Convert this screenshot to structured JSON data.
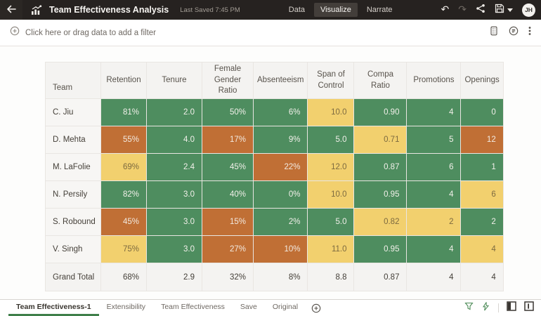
{
  "header": {
    "title": "Team Effectiveness Analysis",
    "last_saved": "Last Saved 7:45 PM",
    "nav": [
      {
        "label": "Data",
        "active": false
      },
      {
        "label": "Visualize",
        "active": true
      },
      {
        "label": "Narrate",
        "active": false
      }
    ],
    "avatar_initials": "JH"
  },
  "filter_bar": {
    "prompt": "Click here or drag data to add a filter"
  },
  "table": {
    "columns": [
      "Team",
      "Retention",
      "Tenure",
      "Female Gender Ratio",
      "Absenteeism",
      "Span of Control",
      "Compa Ratio",
      "Promotions",
      "Openings"
    ],
    "rows": [
      {
        "team": "C. Jiu",
        "cells": [
          {
            "v": "81%",
            "c": "green"
          },
          {
            "v": "2.0",
            "c": "green"
          },
          {
            "v": "50%",
            "c": "green"
          },
          {
            "v": "6%",
            "c": "green"
          },
          {
            "v": "10.0",
            "c": "yellow"
          },
          {
            "v": "0.90",
            "c": "green"
          },
          {
            "v": "4",
            "c": "green"
          },
          {
            "v": "0",
            "c": "green"
          }
        ]
      },
      {
        "team": "D. Mehta",
        "cells": [
          {
            "v": "55%",
            "c": "orange"
          },
          {
            "v": "4.0",
            "c": "green"
          },
          {
            "v": "17%",
            "c": "orange"
          },
          {
            "v": "9%",
            "c": "green"
          },
          {
            "v": "5.0",
            "c": "green"
          },
          {
            "v": "0.71",
            "c": "yellow"
          },
          {
            "v": "5",
            "c": "green"
          },
          {
            "v": "12",
            "c": "orange"
          }
        ]
      },
      {
        "team": "M. LaFolie",
        "cells": [
          {
            "v": "69%",
            "c": "yellow"
          },
          {
            "v": "2.4",
            "c": "green"
          },
          {
            "v": "45%",
            "c": "green"
          },
          {
            "v": "22%",
            "c": "orange"
          },
          {
            "v": "12.0",
            "c": "yellow"
          },
          {
            "v": "0.87",
            "c": "green"
          },
          {
            "v": "6",
            "c": "green"
          },
          {
            "v": "1",
            "c": "green"
          }
        ]
      },
      {
        "team": "N. Persily",
        "cells": [
          {
            "v": "82%",
            "c": "green"
          },
          {
            "v": "3.0",
            "c": "green"
          },
          {
            "v": "40%",
            "c": "green"
          },
          {
            "v": "0%",
            "c": "green"
          },
          {
            "v": "10.0",
            "c": "yellow"
          },
          {
            "v": "0.95",
            "c": "green"
          },
          {
            "v": "4",
            "c": "green"
          },
          {
            "v": "6",
            "c": "yellow"
          }
        ]
      },
      {
        "team": "S. Robound",
        "cells": [
          {
            "v": "45%",
            "c": "orange"
          },
          {
            "v": "3.0",
            "c": "green"
          },
          {
            "v": "15%",
            "c": "orange"
          },
          {
            "v": "2%",
            "c": "green"
          },
          {
            "v": "5.0",
            "c": "green"
          },
          {
            "v": "0.82",
            "c": "yellow"
          },
          {
            "v": "2",
            "c": "yellow"
          },
          {
            "v": "2",
            "c": "green"
          }
        ]
      },
      {
        "team": "V. Singh",
        "cells": [
          {
            "v": "75%",
            "c": "yellow"
          },
          {
            "v": "3.0",
            "c": "green"
          },
          {
            "v": "27%",
            "c": "orange"
          },
          {
            "v": "10%",
            "c": "orange"
          },
          {
            "v": "11.0",
            "c": "yellow"
          },
          {
            "v": "0.95",
            "c": "green"
          },
          {
            "v": "4",
            "c": "green"
          },
          {
            "v": "4",
            "c": "yellow"
          }
        ]
      }
    ],
    "grand_total": {
      "label": "Grand Total",
      "values": [
        "68%",
        "2.9",
        "32%",
        "8%",
        "8.8",
        "0.87",
        "4",
        "4"
      ]
    }
  },
  "colors": {
    "green": {
      "bg": "#4E8D5F",
      "text": "#F2F0EA"
    },
    "yellow": {
      "bg": "#F2D06E",
      "text": "#7C6A40"
    },
    "orange": {
      "bg": "#C06F35",
      "text": "#F2EAE1"
    },
    "accent_green": "#3F7F4A",
    "topbar_bg": "#262220"
  },
  "footer": {
    "tabs": [
      {
        "label": "Team Effectiveness-1",
        "active": true
      },
      {
        "label": "Extensibility",
        "active": false
      },
      {
        "label": "Team Effectiveness",
        "active": false
      },
      {
        "label": "Save",
        "active": false
      },
      {
        "label": "Original",
        "active": false
      }
    ]
  }
}
